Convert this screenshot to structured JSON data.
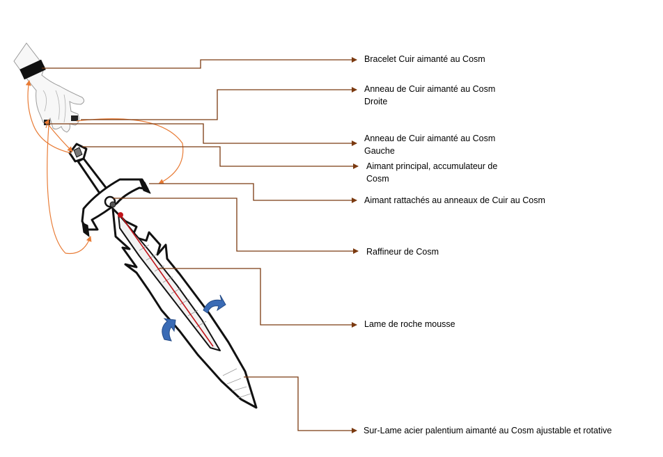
{
  "labels": [
    {
      "id": "bracelet",
      "lines": [
        "Bracelet Cuir aimanté au Cosm"
      ]
    },
    {
      "id": "anneau-droite",
      "lines": [
        "Anneau de Cuir aimanté au Cosm",
        "Droite"
      ]
    },
    {
      "id": "anneau-gauche",
      "lines": [
        "Anneau de Cuir aimanté au Cosm",
        "Gauche"
      ]
    },
    {
      "id": "aimant-principal",
      "lines": [
        "Aimant principal, accumulateur de",
        "Cosm"
      ]
    },
    {
      "id": "aimant-rattaches",
      "lines": [
        "Aimant rattachés au anneaux de Cuir au Cosm"
      ]
    },
    {
      "id": "raffineur",
      "lines": [
        "Raffineur de Cosm"
      ]
    },
    {
      "id": "lame-roche",
      "lines": [
        "Lame de roche mousse"
      ]
    },
    {
      "id": "sur-lame",
      "lines": [
        "Sur-Lame acier palentium aimanté au Cosm ajustable et rotative"
      ]
    }
  ],
  "colors": {
    "leader": "#7b3a10",
    "magnetic_arc": "#e87b35",
    "rotation_arrow": "#3a6bb5",
    "core_line": "#c0141a",
    "outline": "#111111"
  }
}
